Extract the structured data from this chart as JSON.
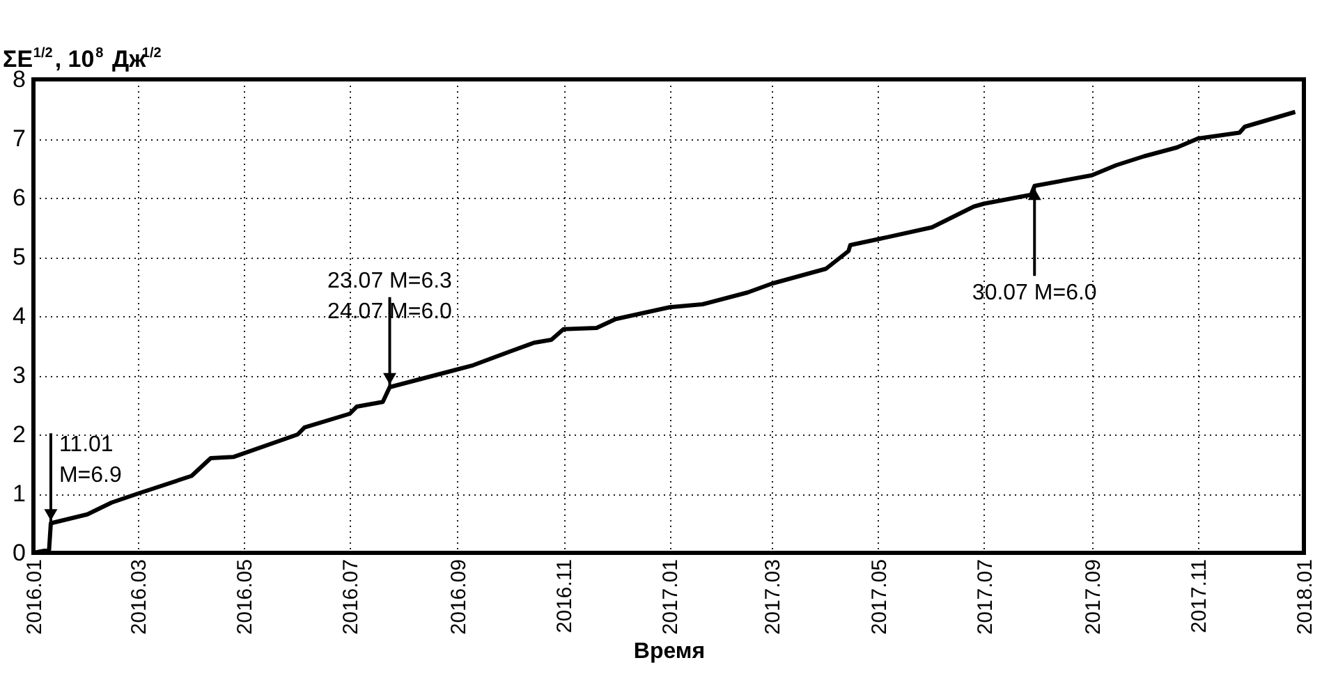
{
  "chart_data": {
    "type": "line",
    "xlabel": "Время",
    "ylabel": "ΣE$^{1/2}$, 10$^{8}$ Дж$^{1/2}$",
    "x": [
      "2016-01-01",
      "2016-01-10",
      "2016-01-11",
      "2016-02-01",
      "2016-02-15",
      "2016-03-01",
      "2016-04-01",
      "2016-04-12",
      "2016-04-25",
      "2016-06-01",
      "2016-06-05",
      "2016-07-01",
      "2016-07-05",
      "2016-07-20",
      "2016-07-24",
      "2016-09-01",
      "2016-09-10",
      "2016-10-01",
      "2016-10-15",
      "2016-10-25",
      "2016-11-01",
      "2016-11-20",
      "2016-12-01",
      "2017-01-01",
      "2017-01-20",
      "2017-02-15",
      "2017-03-01",
      "2017-04-01",
      "2017-04-14",
      "2017-04-15",
      "2017-05-01",
      "2017-06-01",
      "2017-06-25",
      "2017-07-01",
      "2017-07-28",
      "2017-07-30",
      "2017-09-01",
      "2017-09-15",
      "2017-10-01",
      "2017-10-20",
      "2017-11-01",
      "2017-11-25",
      "2017-11-28",
      "2017-12-27"
    ],
    "series": [
      {
        "color": "#000000",
        "values": [
          0,
          0.05,
          0.5,
          0.65,
          0.85,
          1.0,
          1.3,
          1.6,
          1.62,
          2.0,
          2.12,
          2.35,
          2.47,
          2.55,
          2.8,
          3.1,
          3.17,
          3.4,
          3.55,
          3.6,
          3.78,
          3.8,
          3.95,
          4.15,
          4.2,
          4.4,
          4.55,
          4.8,
          5.1,
          5.2,
          5.3,
          5.5,
          5.85,
          5.9,
          6.05,
          6.2,
          6.38,
          6.55,
          6.7,
          6.85,
          7.0,
          7.1,
          7.2,
          7.45
        ]
      }
    ],
    "xlim": [
      "2016-01",
      "2018-01"
    ],
    "xticks": [
      {
        "value": "2016-01",
        "label": "2016.01"
      },
      {
        "value": "2016-03",
        "label": "2016.03"
      },
      {
        "value": "2016-05",
        "label": "2016.05"
      },
      {
        "value": "2016-07",
        "label": "2016.07"
      },
      {
        "value": "2016-09",
        "label": "2016.09"
      },
      {
        "value": "2016-11",
        "label": "2016.11"
      },
      {
        "value": "2017-01",
        "label": "2017.01"
      },
      {
        "value": "2017-03",
        "label": "2017.03"
      },
      {
        "value": "2017-05",
        "label": "2017.05"
      },
      {
        "value": "2017-07",
        "label": "2017.07"
      },
      {
        "value": "2017-09",
        "label": "2017.09"
      },
      {
        "value": "2017-11",
        "label": "2017.11"
      },
      {
        "value": "2018-01",
        "label": "2018.01"
      }
    ],
    "ylim": [
      0,
      8
    ],
    "yticks": [
      0,
      1,
      2,
      3,
      4,
      5,
      6,
      7,
      8
    ],
    "grid": true,
    "line_style": "solid",
    "marker": "none",
    "annotations": [
      {
        "text": "11.01\nM=6.9",
        "x": "2016-01-11",
        "y": 0.5
      },
      {
        "text": "23.07 M=6.3\n24.07 M=6.0",
        "x": "2016-07-24",
        "y": 2.8
      },
      {
        "text": "30.07 M=6.0",
        "x": "2017-07-30",
        "y": 6.2
      }
    ]
  }
}
